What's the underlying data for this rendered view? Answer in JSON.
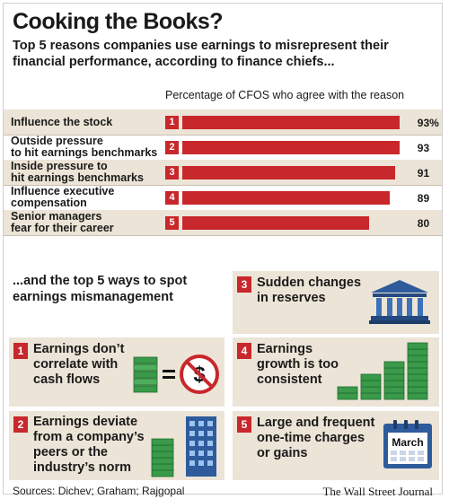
{
  "header": {
    "title": "Cooking the Books?",
    "subtitle": "Top 5 reasons companies use earnings to misrepresent their financial performance, according to finance chiefs..."
  },
  "chart_data": {
    "type": "bar",
    "xlabel": "Percentage of CFOS who agree with the reason",
    "categories": [
      "Influence the stock",
      "Outside pressure to hit earnings benchmarks",
      "Inside pressure to hit earnings benchmarks",
      "Influence executive compensation",
      "Senior managers fear for their career"
    ],
    "label_lines": [
      [
        "Influence the stock"
      ],
      [
        "Outside pressure",
        "to hit earnings benchmarks"
      ],
      [
        "Inside pressure to",
        "hit earnings benchmarks"
      ],
      [
        "Influence executive",
        "compensation"
      ],
      [
        "Senior managers",
        "fear for their career"
      ]
    ],
    "ranks": [
      "1",
      "2",
      "3",
      "4",
      "5"
    ],
    "values": [
      93,
      93,
      91,
      89,
      80
    ],
    "value_labels": [
      "93%",
      "93",
      "91",
      "89",
      "80"
    ],
    "xlim": [
      0,
      100
    ],
    "orientation": "horizontal",
    "bar_color": "#c8272b",
    "row_shading": [
      true,
      false,
      true,
      false,
      true
    ]
  },
  "ways": {
    "heading": "...and the top 5 ways to spot earnings mismanagement",
    "items": [
      {
        "number": "1",
        "text": [
          "Earnings don’t",
          "correlate with",
          "cash flows"
        ],
        "icon": "cash-not-equal-dollar-icon"
      },
      {
        "number": "2",
        "text": [
          "Earnings deviate",
          "from a company’s",
          "peers or the",
          "industry’s norm"
        ],
        "icon": "cash-stack-building-icon"
      },
      {
        "number": "3",
        "text": [
          "Sudden changes",
          "in reserves"
        ],
        "icon": "bank-icon"
      },
      {
        "number": "4",
        "text": [
          "Earnings",
          "growth is too",
          "consistent"
        ],
        "icon": "growing-cash-stacks-icon"
      },
      {
        "number": "5",
        "text": [
          "Large and frequent",
          "one-time charges",
          "or gains"
        ],
        "icon": "calendar-icon",
        "icon_text": "March"
      }
    ]
  },
  "footer": {
    "sources": "Sources: Dichev; Graham; Rajgopal",
    "credit": "The Wall Street Journal"
  },
  "colors": {
    "accent": "#c8272b",
    "panel": "#ece4d6",
    "cash_green": "#3a9a4a",
    "building_blue": "#2d5b9c"
  }
}
